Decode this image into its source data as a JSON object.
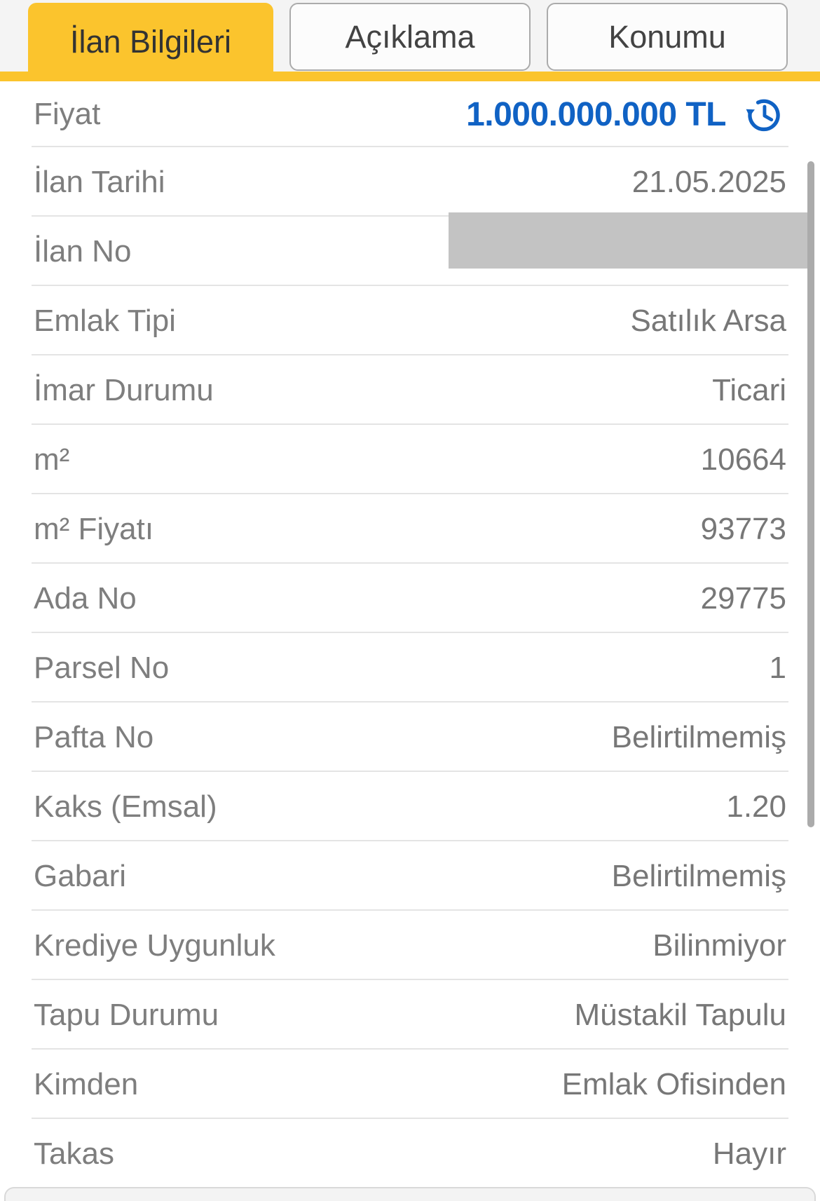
{
  "tabs": [
    {
      "label": "İlan Bilgileri",
      "active": true
    },
    {
      "label": "Açıklama",
      "active": false
    },
    {
      "label": "Konumu",
      "active": false
    }
  ],
  "price_row": {
    "label": "Fiyat",
    "value": "1.000.000.000 TL",
    "icon": "price-history-icon"
  },
  "rows": [
    {
      "label": "İlan Tarihi",
      "value": "21.05.2025",
      "redacted": false
    },
    {
      "label": "İlan No",
      "value": "",
      "redacted": true
    },
    {
      "label": "Emlak Tipi",
      "value": "Satılık Arsa",
      "redacted": false
    },
    {
      "label": "İmar Durumu",
      "value": "Ticari",
      "redacted": false
    },
    {
      "label": "m²",
      "value": "10664",
      "redacted": false
    },
    {
      "label": "m² Fiyatı",
      "value": "93773",
      "redacted": false
    },
    {
      "label": "Ada No",
      "value": "29775",
      "redacted": false
    },
    {
      "label": "Parsel No",
      "value": "1",
      "redacted": false
    },
    {
      "label": "Pafta No",
      "value": "Belirtilmemiş",
      "redacted": false
    },
    {
      "label": "Kaks (Emsal)",
      "value": "1.20",
      "redacted": false
    },
    {
      "label": "Gabari",
      "value": "Belirtilmemiş",
      "redacted": false
    },
    {
      "label": "Krediye Uygunluk",
      "value": "Bilinmiyor",
      "redacted": false
    },
    {
      "label": "Tapu Durumu",
      "value": "Müstakil Tapulu",
      "redacted": false
    },
    {
      "label": "Kimden",
      "value": "Emlak Ofisinden",
      "redacted": false
    },
    {
      "label": "Takas",
      "value": "Hayır",
      "redacted": false
    }
  ],
  "colors": {
    "accent": "#FBC42D",
    "price_blue": "#1062C4",
    "redaction_gray": "#C3C3C3"
  }
}
